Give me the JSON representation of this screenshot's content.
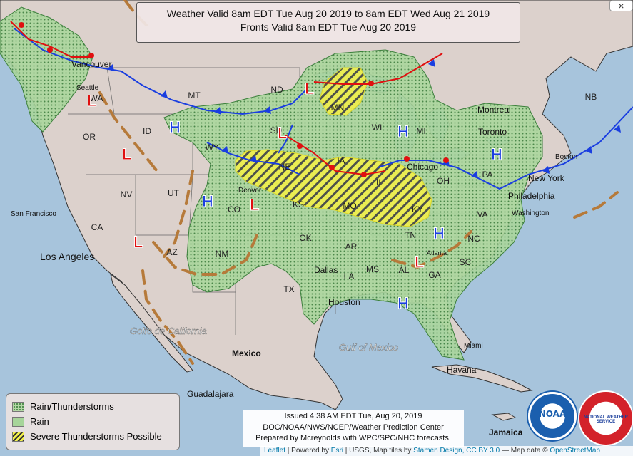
{
  "title": {
    "line1": "Weather Valid 8am EDT Tue Aug 20 2019 to 8am EDT Wed Aug 21 2019",
    "line2": "Fronts Valid 8am EDT Tue Aug 20 2019"
  },
  "close_label": "×",
  "legend": {
    "rain_thunder": "Rain/Thunderstorms",
    "rain": "Rain",
    "severe": "Severe Thunderstorms Possible"
  },
  "issued": {
    "line1": "Issued 4:38 AM EDT Tue, Aug 20, 2019",
    "line2": "DOC/NOAA/NWS/NCEP/Weather Prediction Center",
    "line3": "Prepared by Mcreynolds with WPC/SPC/NHC forecasts."
  },
  "attribution": {
    "leaflet": "Leaflet",
    "powered": " | Powered by ",
    "esri": "Esri",
    "rest": " | USGS, Map tiles by ",
    "stamen": "Stamen Design",
    "cc": ", CC BY 3.0",
    "mapdata": " — Map data © ",
    "osm": "OpenStreetMap"
  },
  "logos": {
    "noaa": "NOAA",
    "nws": "NATIONAL WEATHER SERVICE"
  },
  "states": [
    "WA",
    "MT",
    "ND",
    "MN",
    "WI",
    "MI",
    "NB",
    "ID",
    "OR",
    "WY",
    "SD",
    "IA",
    "IL",
    "OH",
    "PA",
    "NV",
    "UT",
    "CO",
    "NE",
    "KS",
    "MO",
    "KY",
    "VA",
    "CA",
    "AZ",
    "NM",
    "OK",
    "AR",
    "TN",
    "NC",
    "SC",
    "TX",
    "LA",
    "MS",
    "AL",
    "GA"
  ],
  "cities": [
    "Vancouver",
    "Seattle",
    "Montreal",
    "Toronto",
    "Boston",
    "New York",
    "Philadelphia",
    "Washington",
    "Chicago",
    "Denver",
    "San Francisco",
    "Los Angeles",
    "Dallas",
    "Houston",
    "Atlanta",
    "Miami",
    "Havana",
    "Jamaica",
    "Guadalajara",
    "Mexico"
  ],
  "water_labels": [
    "Golfo de California",
    "Gulf of Mexico"
  ],
  "pressure_centers": {
    "high": "H",
    "low": "L"
  },
  "colors": {
    "ocean": "#a7c4dc",
    "land": "#dcd1cc",
    "rain": "#a6d59a",
    "severe": "#f2f04a",
    "cold_front": "#1a3ee0",
    "warm_front": "#e01010",
    "trough": "#b67a3a"
  }
}
